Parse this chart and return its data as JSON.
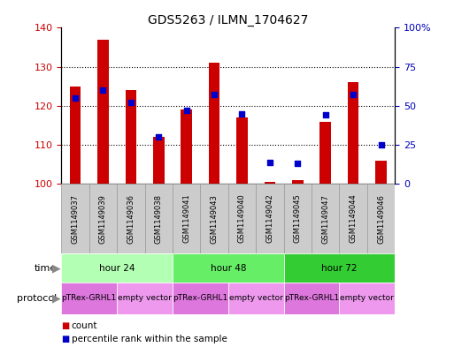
{
  "title": "GDS5263 / ILMN_1704627",
  "samples": [
    "GSM1149037",
    "GSM1149039",
    "GSM1149036",
    "GSM1149038",
    "GSM1149041",
    "GSM1149043",
    "GSM1149040",
    "GSM1149042",
    "GSM1149045",
    "GSM1149047",
    "GSM1149044",
    "GSM1149046"
  ],
  "count_values": [
    125,
    137,
    124,
    112,
    119,
    131,
    117,
    100.5,
    101,
    116,
    126,
    106
  ],
  "percentile_values": [
    55,
    60,
    52,
    30,
    47,
    57,
    45,
    14,
    13,
    44,
    57,
    25
  ],
  "ylim_left": [
    100,
    140
  ],
  "ylim_right": [
    0,
    100
  ],
  "yticks_left": [
    100,
    110,
    120,
    130,
    140
  ],
  "yticks_right": [
    0,
    25,
    50,
    75,
    100
  ],
  "ytick_labels_right": [
    "0",
    "25",
    "50",
    "75",
    "100%"
  ],
  "bar_color": "#cc0000",
  "dot_color": "#0000cc",
  "bg_color": "#ffffff",
  "plot_bg": "#ffffff",
  "grid_dotted_at": [
    110,
    120,
    130
  ],
  "time_groups": [
    {
      "label": "hour 24",
      "start": 0,
      "end": 4,
      "color": "#b3ffb3"
    },
    {
      "label": "hour 48",
      "start": 4,
      "end": 8,
      "color": "#66ee66"
    },
    {
      "label": "hour 72",
      "start": 8,
      "end": 12,
      "color": "#33cc33"
    }
  ],
  "protocol_groups": [
    {
      "label": "pTRex-GRHL1",
      "start": 0,
      "end": 2,
      "color": "#dd77dd"
    },
    {
      "label": "empty vector",
      "start": 2,
      "end": 4,
      "color": "#ee99ee"
    },
    {
      "label": "pTRex-GRHL1",
      "start": 4,
      "end": 6,
      "color": "#dd77dd"
    },
    {
      "label": "empty vector",
      "start": 6,
      "end": 8,
      "color": "#ee99ee"
    },
    {
      "label": "pTRex-GRHL1",
      "start": 8,
      "end": 10,
      "color": "#dd77dd"
    },
    {
      "label": "empty vector",
      "start": 10,
      "end": 12,
      "color": "#ee99ee"
    }
  ],
  "bar_width": 0.4,
  "sample_box_color": "#cccccc",
  "sample_box_edge": "#999999",
  "left_color": "#cc0000",
  "right_color": "#0000bb",
  "title_fontsize": 10,
  "tick_fontsize": 8,
  "sample_fontsize": 6.0,
  "row_label_fontsize": 8,
  "legend_fontsize": 7.5,
  "legend_marker_size": 7
}
